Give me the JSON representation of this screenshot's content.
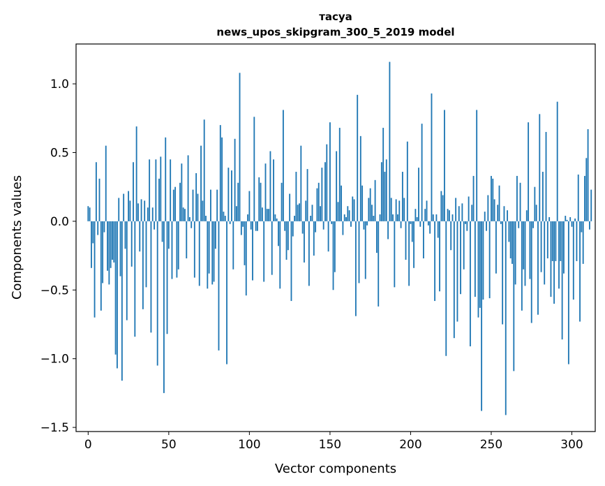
{
  "chart_data": {
    "type": "bar",
    "title_line1": "тасуа",
    "title_line2": "news_upos_skipgram_300_5_2019 model",
    "xlabel": "Vector components",
    "ylabel": "Components values",
    "xlim": [
      -7.5,
      314.5
    ],
    "ylim": [
      -1.53,
      1.29
    ],
    "xticks": [
      0,
      50,
      100,
      150,
      200,
      250,
      300
    ],
    "xtick_labels": [
      "0",
      "50",
      "100",
      "150",
      "200",
      "250",
      "300"
    ],
    "yticks": [
      -1.5,
      -1.0,
      -0.5,
      0.0,
      0.5,
      1.0
    ],
    "ytick_labels": [
      "−1.5",
      "−1.0",
      "−0.5",
      "0.0",
      "0.5",
      "1.0"
    ],
    "bar_color": "#1f77b4",
    "values": [
      0.11,
      0.1,
      -0.34,
      -0.16,
      -0.7,
      0.43,
      -0.1,
      0.31,
      -0.65,
      -0.45,
      -0.08,
      0.55,
      -0.36,
      -0.46,
      -0.34,
      -0.28,
      -0.3,
      -0.97,
      -1.07,
      0.17,
      -0.4,
      -1.16,
      0.2,
      -0.2,
      -0.72,
      0.22,
      0.15,
      -0.33,
      0.43,
      -0.84,
      0.69,
      0.13,
      -0.22,
      0.16,
      -0.64,
      0.15,
      -0.48,
      0.1,
      0.45,
      -0.81,
      0.1,
      -0.06,
      0.45,
      -1.05,
      0.31,
      0.47,
      -0.15,
      -1.25,
      0.61,
      -0.82,
      -0.2,
      0.45,
      -0.42,
      0.23,
      0.25,
      -0.41,
      -0.35,
      0.28,
      0.42,
      0.1,
      0.09,
      -0.27,
      0.48,
      0.03,
      -0.05,
      0.23,
      -0.41,
      0.35,
      0.2,
      -0.47,
      0.55,
      0.15,
      0.74,
      0.04,
      -0.49,
      -0.38,
      0.23,
      -0.46,
      -0.44,
      -0.2,
      0.23,
      -0.94,
      0.7,
      0.61,
      0.07,
      0.04,
      -1.04,
      0.39,
      -0.02,
      0.37,
      -0.35,
      0.6,
      0.11,
      0.28,
      1.08,
      -0.1,
      -0.04,
      -0.32,
      -0.54,
      0.05,
      0.22,
      -0.06,
      -0.43,
      0.76,
      -0.07,
      -0.07,
      0.32,
      0.28,
      0.1,
      -0.44,
      0.42,
      0.09,
      0.09,
      0.51,
      -0.39,
      0.45,
      0.05,
      0.02,
      -0.18,
      -0.49,
      0.28,
      0.81,
      -0.07,
      -0.28,
      -0.21,
      0.2,
      -0.58,
      -0.11,
      0.04,
      0.36,
      0.12,
      0.13,
      0.55,
      -0.09,
      -0.3,
      0.15,
      0.38,
      -0.47,
      0.04,
      0.12,
      -0.25,
      -0.08,
      0.24,
      0.28,
      0.11,
      0.39,
      -0.06,
      0.43,
      0.56,
      -0.22,
      0.72,
      -0.02,
      -0.5,
      -0.37,
      0.51,
      0.14,
      0.68,
      0.26,
      -0.1,
      0.05,
      0.03,
      0.11,
      0.08,
      -0.04,
      0.18,
      0.16,
      -0.69,
      0.92,
      -0.45,
      0.62,
      0.26,
      -0.06,
      -0.42,
      -0.03,
      0.17,
      0.24,
      0.12,
      0.04,
      0.3,
      -0.23,
      -0.62,
      0.05,
      0.43,
      0.68,
      0.36,
      0.45,
      -0.13,
      1.16,
      0.17,
      0.05,
      -0.48,
      0.16,
      0.05,
      0.15,
      -0.05,
      0.36,
      0.17,
      -0.28,
      0.58,
      -0.47,
      -0.02,
      -0.15,
      -0.34,
      0.09,
      0.03,
      0.39,
      -0.04,
      0.71,
      -0.27,
      0.09,
      0.15,
      -0.03,
      -0.09,
      0.93,
      0.05,
      -0.58,
      0.05,
      -0.12,
      -0.51,
      0.22,
      0.19,
      0.81,
      -0.98,
      0.09,
      0.08,
      -0.21,
      0.05,
      -0.85,
      0.17,
      -0.73,
      0.11,
      -0.53,
      0.13,
      -0.35,
      -0.02,
      -0.07,
      0.18,
      -0.91,
      0.12,
      0.33,
      -0.55,
      0.81,
      -0.7,
      -0.63,
      -1.38,
      -0.57,
      0.07,
      -0.07,
      0.19,
      -0.56,
      0.33,
      0.31,
      0.16,
      -0.38,
      0.12,
      0.26,
      -0.02,
      -0.75,
      0.11,
      -1.41,
      0.08,
      -0.15,
      -0.27,
      -0.31,
      -1.09,
      -0.46,
      0.33,
      -0.05,
      0.28,
      -0.65,
      -0.35,
      -0.47,
      0.08,
      0.72,
      -0.42,
      -0.74,
      -0.05,
      0.25,
      0.12,
      -0.68,
      0.78,
      -0.37,
      0.36,
      -0.46,
      0.65,
      -0.27,
      0.03,
      -0.55,
      -0.29,
      -0.6,
      -0.29,
      0.87,
      -0.49,
      -0.29,
      -0.86,
      -0.38,
      0.04,
      0.01,
      -1.04,
      0.03,
      -0.04,
      -0.57,
      0.02,
      -0.29,
      0.34,
      -0.73,
      -0.08,
      -0.31,
      0.33,
      0.46,
      0.67,
      -0.06,
      0.23
    ]
  }
}
